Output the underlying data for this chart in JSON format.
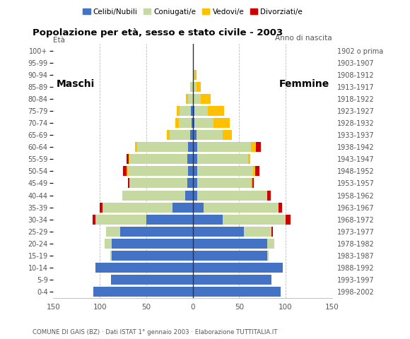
{
  "age_groups": [
    "0-4",
    "5-9",
    "10-14",
    "15-19",
    "20-24",
    "25-29",
    "30-34",
    "35-39",
    "40-44",
    "45-49",
    "50-54",
    "55-59",
    "60-64",
    "65-69",
    "70-74",
    "75-79",
    "80-84",
    "85-89",
    "90-94",
    "95-99",
    "100+"
  ],
  "birth_years": [
    "1998-2002",
    "1993-1997",
    "1988-1992",
    "1983-1987",
    "1978-1982",
    "1973-1977",
    "1968-1972",
    "1963-1967",
    "1958-1962",
    "1953-1957",
    "1948-1952",
    "1943-1947",
    "1938-1942",
    "1933-1937",
    "1928-1932",
    "1923-1927",
    "1918-1922",
    "1913-1917",
    "1908-1912",
    "1903-1907",
    "1902 o prima"
  ],
  "males": {
    "celibe": [
      107,
      88,
      105,
      87,
      87,
      78,
      50,
      22,
      8,
      6,
      5,
      6,
      5,
      3,
      1,
      2,
      0,
      0,
      0,
      0,
      0
    ],
    "coniugato": [
      0,
      0,
      0,
      2,
      8,
      15,
      55,
      75,
      68,
      62,
      65,
      62,
      55,
      22,
      14,
      12,
      5,
      3,
      0,
      0,
      0
    ],
    "vedovo": [
      0,
      0,
      0,
      0,
      0,
      0,
      0,
      0,
      0,
      0,
      1,
      1,
      2,
      3,
      4,
      3,
      2,
      0,
      0,
      0,
      0
    ],
    "divorziato": [
      0,
      0,
      0,
      0,
      0,
      0,
      3,
      3,
      0,
      2,
      4,
      2,
      0,
      0,
      0,
      0,
      0,
      0,
      0,
      0,
      0
    ]
  },
  "females": {
    "nubile": [
      95,
      85,
      97,
      80,
      80,
      55,
      32,
      12,
      5,
      5,
      5,
      5,
      5,
      4,
      2,
      2,
      1,
      0,
      1,
      0,
      0
    ],
    "coniugata": [
      0,
      0,
      0,
      2,
      8,
      30,
      68,
      80,
      75,
      58,
      60,
      55,
      58,
      28,
      20,
      14,
      8,
      4,
      1,
      0,
      0
    ],
    "vedova": [
      0,
      0,
      0,
      0,
      0,
      0,
      0,
      0,
      0,
      1,
      2,
      2,
      5,
      10,
      18,
      18,
      10,
      5,
      2,
      0,
      0
    ],
    "divorziata": [
      0,
      0,
      0,
      0,
      0,
      1,
      5,
      4,
      4,
      2,
      5,
      0,
      5,
      0,
      0,
      0,
      0,
      0,
      0,
      0,
      0
    ]
  },
  "colors": {
    "celibe_nubile": "#4472c4",
    "coniugato_coniugata": "#c5d9a0",
    "vedovo_vedova": "#ffc000",
    "divorziato_divorziata": "#cc0000"
  },
  "title": "Popolazione per età, sesso e stato civile - 2003",
  "subtitle": "COMUNE DI GAIS (BZ) · Dati ISTAT 1° gennaio 2003 · Elaborazione TUTTITALIA.IT",
  "label_maschi": "Maschi",
  "label_femmine": "Femmine",
  "ylabel_left": "Età",
  "ylabel_right": "Anno di nascita",
  "xlim": 150,
  "legend_labels": [
    "Celibi/Nubili",
    "Coniugati/e",
    "Vedovi/e",
    "Divorziati/e"
  ]
}
